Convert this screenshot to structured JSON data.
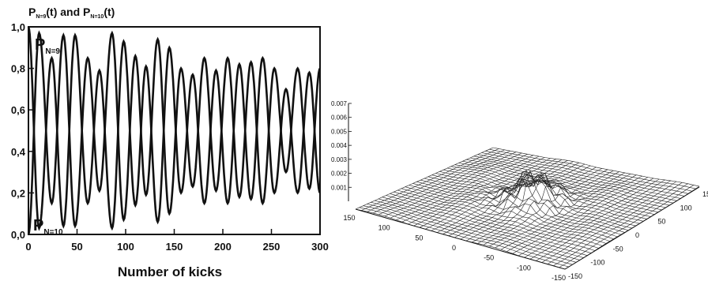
{
  "chart_data": [
    {
      "type": "line",
      "title_parts": {
        "p1": "P",
        "sub1": "N=9",
        "mid": "(t) and P",
        "sub2": "N=10",
        "end": "(t)"
      },
      "xlabel": "Number of kicks",
      "ylabel": "",
      "xlim": [
        0,
        300
      ],
      "ylim": [
        0.0,
        1.0
      ],
      "xticks": [
        0,
        50,
        100,
        150,
        200,
        250,
        300
      ],
      "yticks": [
        0.0,
        0.2,
        0.4,
        0.6,
        0.8,
        1.0
      ],
      "xtick_labels": [
        "0",
        "50",
        "100",
        "150",
        "200",
        "250",
        "300"
      ],
      "ytick_labels": [
        "0,0",
        "0,2",
        "0,4",
        "0,6",
        "0,8",
        "1,0"
      ],
      "grid": false,
      "series": [
        {
          "name_main": "P",
          "name_sub": "N=9",
          "x": [
            0,
            11,
            24,
            36,
            48,
            61,
            73,
            86,
            98,
            110,
            121,
            133,
            145,
            157,
            169,
            181,
            193,
            205,
            217,
            229,
            241,
            253,
            265,
            277,
            289,
            300
          ],
          "y": [
            1.0,
            0.03,
            0.85,
            0.04,
            0.96,
            0.15,
            0.79,
            0.03,
            0.93,
            0.14,
            0.81,
            0.06,
            0.9,
            0.2,
            0.77,
            0.15,
            0.79,
            0.15,
            0.82,
            0.17,
            0.85,
            0.2,
            0.7,
            0.2,
            0.78,
            0.2
          ]
        },
        {
          "name_main": "P",
          "name_sub": "N=10",
          "x": [
            0,
            11,
            24,
            36,
            48,
            61,
            73,
            86,
            98,
            110,
            121,
            133,
            145,
            157,
            169,
            181,
            193,
            205,
            217,
            229,
            241,
            253,
            265,
            277,
            289,
            300
          ],
          "y": [
            0.0,
            0.97,
            0.15,
            0.96,
            0.04,
            0.85,
            0.21,
            0.97,
            0.07,
            0.86,
            0.19,
            0.94,
            0.1,
            0.8,
            0.23,
            0.85,
            0.21,
            0.85,
            0.18,
            0.83,
            0.15,
            0.8,
            0.3,
            0.8,
            0.22,
            0.8
          ]
        }
      ]
    },
    {
      "type": "surface",
      "x_ticks": [
        "150",
        "100",
        "50",
        "0",
        "-50",
        "-100",
        "-150"
      ],
      "y_ticks": [
        "150",
        "100",
        "50",
        "0",
        "-50",
        "-100",
        "-150"
      ],
      "z_ticks": [
        "0.007",
        "0.006",
        "0.005",
        "0.004",
        "0.003",
        "0.002",
        "0.001"
      ],
      "x_range": [
        -150,
        150
      ],
      "y_range": [
        -150,
        150
      ],
      "z_range": [
        0,
        0.007
      ]
    }
  ]
}
